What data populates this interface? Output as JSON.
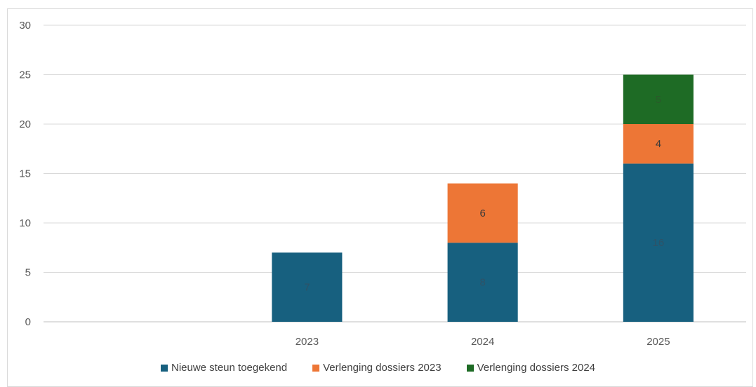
{
  "chart_data": {
    "type": "bar",
    "stacked": true,
    "categories": [
      "",
      "2023",
      "2024",
      "2025"
    ],
    "series": [
      {
        "name": "Nieuwe steun toegekend",
        "values": [
          0,
          7,
          8,
          16
        ],
        "color": "#17607f",
        "label_color": "#2f5266"
      },
      {
        "name": "Verlenging dossiers 2023",
        "values": [
          0,
          0,
          6,
          4
        ],
        "color": "#ed7636",
        "label_color": "#3a3a3a"
      },
      {
        "name": "Verlenging dossiers 2024",
        "values": [
          0,
          0,
          0,
          5
        ],
        "color": "#1e6b25",
        "label_color": "#2a5a2a"
      }
    ],
    "ylim": [
      0,
      30
    ],
    "yticks": [
      0,
      5,
      10,
      15,
      20,
      25,
      30
    ],
    "grid": true,
    "legend_position": "bottom",
    "title": "",
    "xlabel": "",
    "ylabel": ""
  }
}
